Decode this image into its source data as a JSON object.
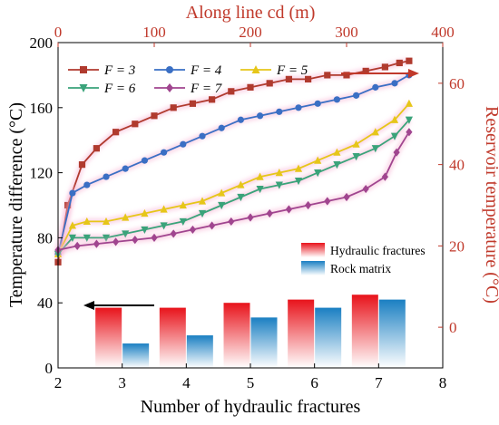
{
  "colors": {
    "left_axis": "#000000",
    "right_axis": "#c0392b",
    "hydraulic_bar": "#e8131b",
    "matrix_bar": "#1a7fc2",
    "series": [
      "#b03a2e",
      "#3a6fc4",
      "#e6c619",
      "#3aa37a",
      "#a0458f"
    ],
    "glow": "#f7b6d6"
  },
  "chart_data": {
    "type": "line+bar",
    "xlabel": "Number of hydraulic fractures",
    "ylabel": "Temperature difference (°C)",
    "top_xlabel": "Along line cd (m)",
    "right_ylabel": "Reservoir temperature (°C)",
    "x_ticks": [
      "2",
      "3",
      "4",
      "5",
      "6",
      "7",
      "8"
    ],
    "y_ticks": [
      "0",
      "40",
      "80",
      "120",
      "160",
      "200"
    ],
    "top_ticks": [
      "0",
      "100",
      "200",
      "300",
      "400"
    ],
    "right_ticks": [
      "0",
      "20",
      "40",
      "60"
    ],
    "xlim": [
      2,
      8
    ],
    "ylim": [
      0,
      200
    ],
    "top_lim": [
      0,
      400
    ],
    "right_lim": [
      -10,
      70
    ],
    "bars": {
      "categories": [
        3,
        4,
        5,
        6,
        7
      ],
      "series": [
        {
          "name": "Hydraulic fractures",
          "values": [
            37,
            37,
            40,
            42,
            45
          ]
        },
        {
          "name": "Rock matrix",
          "values": [
            15,
            20,
            31,
            37,
            42
          ]
        }
      ]
    },
    "lines": [
      {
        "name": "F = 3",
        "marker": "square",
        "points": [
          [
            0,
            16
          ],
          [
            10,
            30
          ],
          [
            25,
            40
          ],
          [
            40,
            44
          ],
          [
            60,
            48
          ],
          [
            80,
            50
          ],
          [
            100,
            52
          ],
          [
            120,
            54
          ],
          [
            140,
            55
          ],
          [
            160,
            56
          ],
          [
            180,
            58
          ],
          [
            200,
            59
          ],
          [
            220,
            60
          ],
          [
            240,
            61
          ],
          [
            260,
            61
          ],
          [
            280,
            62
          ],
          [
            300,
            62
          ],
          [
            320,
            63
          ],
          [
            340,
            64
          ],
          [
            355,
            65
          ],
          [
            365,
            65.5
          ]
        ]
      },
      {
        "name": "F = 4",
        "marker": "circle",
        "points": [
          [
            0,
            18
          ],
          [
            15,
            33
          ],
          [
            30,
            35
          ],
          [
            50,
            37
          ],
          [
            70,
            39
          ],
          [
            90,
            41
          ],
          [
            110,
            43
          ],
          [
            130,
            45
          ],
          [
            150,
            47
          ],
          [
            170,
            49
          ],
          [
            190,
            51
          ],
          [
            210,
            52
          ],
          [
            230,
            53
          ],
          [
            250,
            54
          ],
          [
            270,
            55
          ],
          [
            290,
            56
          ],
          [
            310,
            57
          ],
          [
            330,
            59
          ],
          [
            350,
            60
          ],
          [
            365,
            62
          ]
        ]
      },
      {
        "name": "F = 5",
        "marker": "triangle-up",
        "points": [
          [
            0,
            18
          ],
          [
            15,
            25
          ],
          [
            30,
            26
          ],
          [
            50,
            26
          ],
          [
            70,
            27
          ],
          [
            90,
            28
          ],
          [
            110,
            29
          ],
          [
            130,
            30
          ],
          [
            150,
            31
          ],
          [
            170,
            33
          ],
          [
            190,
            35
          ],
          [
            210,
            37
          ],
          [
            230,
            38
          ],
          [
            250,
            39
          ],
          [
            270,
            41
          ],
          [
            290,
            43
          ],
          [
            310,
            45
          ],
          [
            330,
            48
          ],
          [
            350,
            51
          ],
          [
            365,
            55
          ]
        ]
      },
      {
        "name": "F = 6",
        "marker": "triangle-down",
        "points": [
          [
            0,
            18
          ],
          [
            15,
            22
          ],
          [
            30,
            22
          ],
          [
            50,
            22
          ],
          [
            70,
            23
          ],
          [
            90,
            24
          ],
          [
            110,
            25
          ],
          [
            130,
            26
          ],
          [
            150,
            28
          ],
          [
            170,
            30
          ],
          [
            190,
            32
          ],
          [
            210,
            34
          ],
          [
            230,
            35
          ],
          [
            250,
            36
          ],
          [
            270,
            38
          ],
          [
            290,
            40
          ],
          [
            310,
            42
          ],
          [
            330,
            44
          ],
          [
            350,
            47
          ],
          [
            365,
            51
          ]
        ]
      },
      {
        "name": "F = 7",
        "marker": "diamond",
        "points": [
          [
            0,
            19
          ],
          [
            20,
            20
          ],
          [
            40,
            20.5
          ],
          [
            60,
            21
          ],
          [
            80,
            21.5
          ],
          [
            100,
            22
          ],
          [
            120,
            23
          ],
          [
            140,
            24
          ],
          [
            160,
            25
          ],
          [
            180,
            26
          ],
          [
            200,
            27
          ],
          [
            220,
            28
          ],
          [
            240,
            29
          ],
          [
            260,
            30
          ],
          [
            280,
            31
          ],
          [
            300,
            32
          ],
          [
            320,
            34
          ],
          [
            340,
            37
          ],
          [
            352,
            43
          ],
          [
            365,
            48
          ]
        ]
      }
    ]
  }
}
